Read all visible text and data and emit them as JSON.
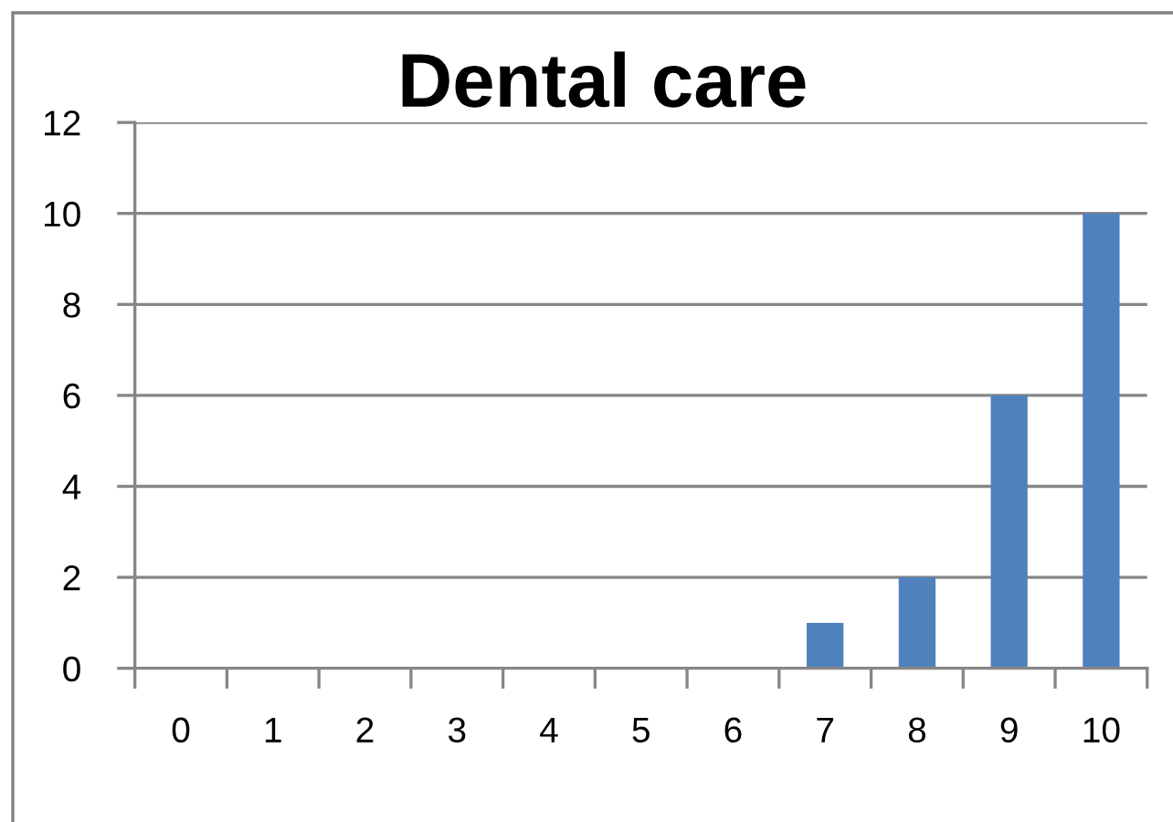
{
  "chart_data": {
    "type": "bar",
    "title": "Dental care",
    "categories": [
      "0",
      "1",
      "2",
      "3",
      "4",
      "5",
      "6",
      "7",
      "8",
      "9",
      "10"
    ],
    "values": [
      0,
      0,
      0,
      0,
      0,
      0,
      0,
      1,
      2,
      6,
      10
    ],
    "color": "#4f81bd",
    "ylim": [
      0,
      12
    ],
    "yticks": [
      0,
      2,
      4,
      6,
      8,
      10,
      12
    ],
    "grid": "y"
  }
}
